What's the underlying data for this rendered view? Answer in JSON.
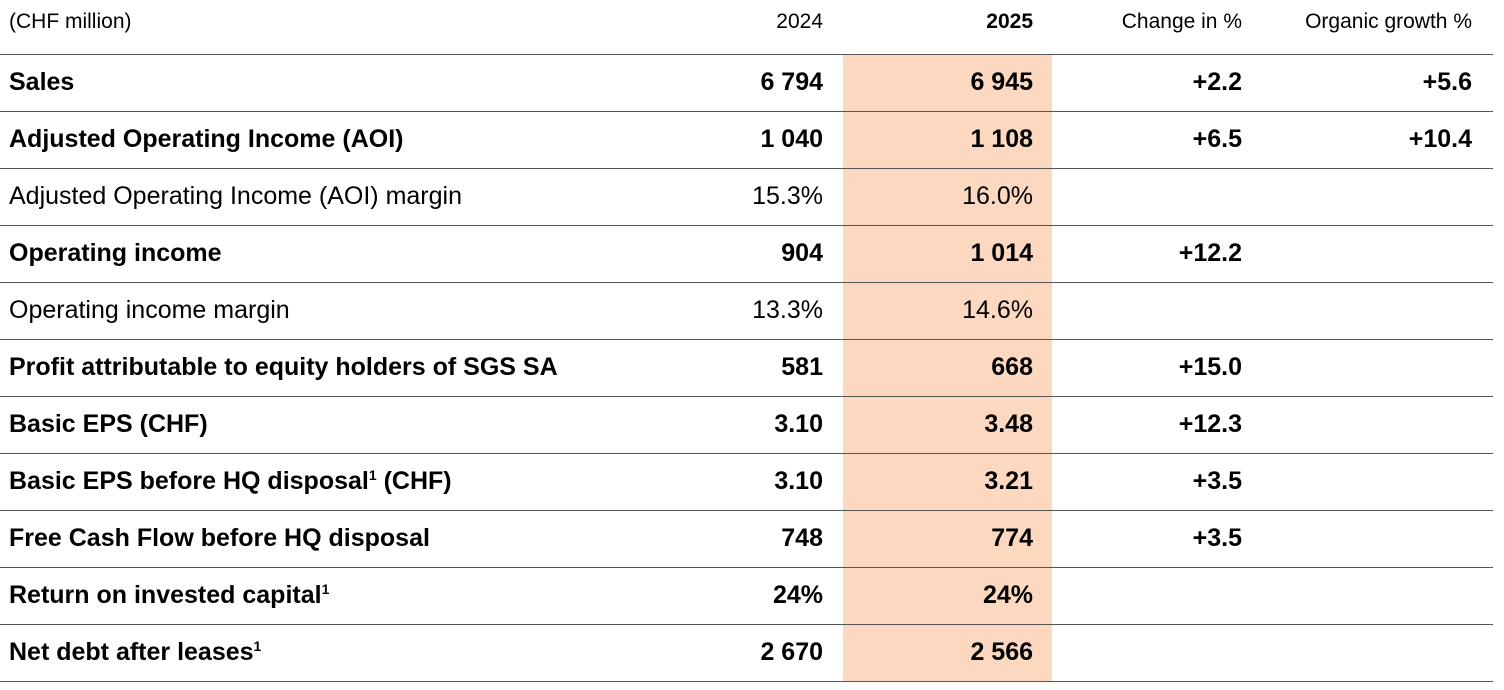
{
  "table": {
    "header": [
      "(CHF million)",
      "2024",
      "2025",
      "Change in %",
      "Organic growth %"
    ],
    "rows": [
      {
        "label": "Sales",
        "bold": true,
        "cells": [
          "6 794",
          "6 945",
          "+2.2",
          "+5.6"
        ]
      },
      {
        "label": "Adjusted Operating Income (AOI)",
        "bold": true,
        "cells": [
          "1 040",
          "1 108",
          "+6.5",
          "+10.4"
        ]
      },
      {
        "label": "Adjusted Operating Income (AOI) margin",
        "bold": false,
        "cells": [
          "15.3%",
          "16.0%",
          null,
          null
        ]
      },
      {
        "label": "Operating income",
        "bold": true,
        "cells": [
          "904",
          "1 014",
          "+12.2",
          null
        ]
      },
      {
        "label": "Operating income margin",
        "bold": false,
        "cells": [
          "13.3%",
          "14.6%",
          null,
          null
        ]
      },
      {
        "label": "Profit attributable to equity holders of SGS SA",
        "bold": true,
        "cells": [
          "581",
          "668",
          "+15.0",
          null
        ]
      },
      {
        "label": "Basic EPS (CHF)",
        "bold": true,
        "cells": [
          "3.10",
          "3.48",
          "+12.3",
          null
        ]
      },
      {
        "label": "Basic EPS before HQ disposal",
        "note": "1",
        "label_suffix": "(CHF)",
        "bold": true,
        "cells": [
          "3.10",
          "3.21",
          "+3.5",
          null
        ]
      },
      {
        "label": "Free Cash Flow before HQ disposal",
        "bold": true,
        "cells": [
          "748",
          "774",
          "+3.5",
          null
        ]
      },
      {
        "label": "Return on invested capital",
        "note": "1",
        "bold": true,
        "cells": [
          "24%",
          "24%",
          null,
          null
        ]
      },
      {
        "label": "Net debt after leases",
        "note": "1",
        "bold": true,
        "cells": [
          "2 670",
          "2 566",
          null,
          null
        ]
      }
    ]
  }
}
